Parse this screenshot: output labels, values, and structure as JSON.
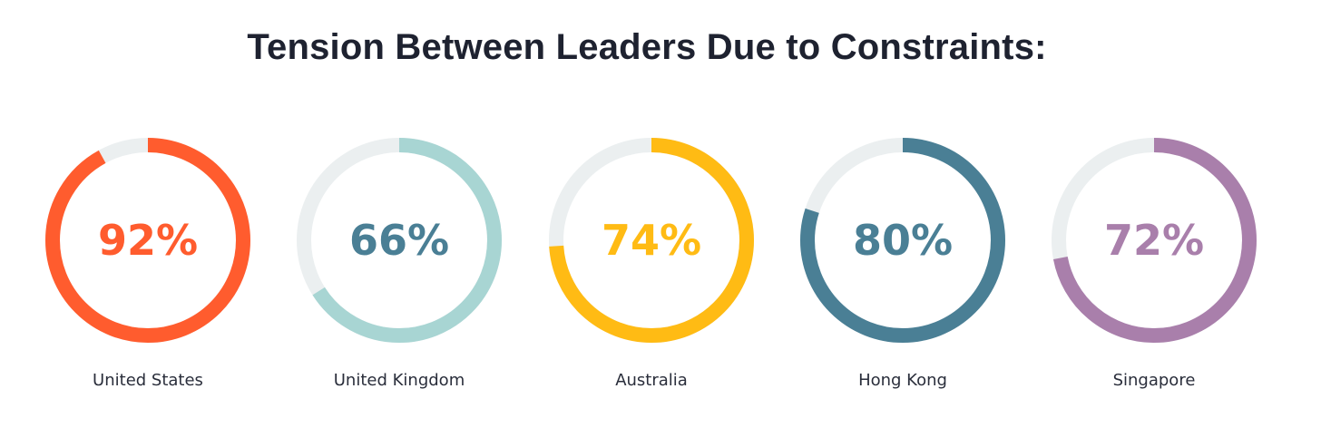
{
  "chart_data": {
    "type": "pie",
    "subtype": "donut-progress",
    "title": "Tension Between Leaders Due to Constraints:",
    "track_color": "#ebeff0",
    "items": [
      {
        "label": "United States",
        "value": 92,
        "display": "92%",
        "color": "#ff5c2e",
        "text_color": "#ff5c2e"
      },
      {
        "label": "United Kingdom",
        "value": 66,
        "display": "66%",
        "color": "#a8d5d3",
        "text_color": "#4a7f95"
      },
      {
        "label": "Australia",
        "value": 74,
        "display": "74%",
        "color": "#ffbb14",
        "text_color": "#ffbb14"
      },
      {
        "label": "Hong Kong",
        "value": 80,
        "display": "80%",
        "color": "#4a7f95",
        "text_color": "#4a7f95"
      },
      {
        "label": "Singapore",
        "value": 72,
        "display": "72%",
        "color": "#a97fab",
        "text_color": "#a97fab"
      }
    ]
  }
}
